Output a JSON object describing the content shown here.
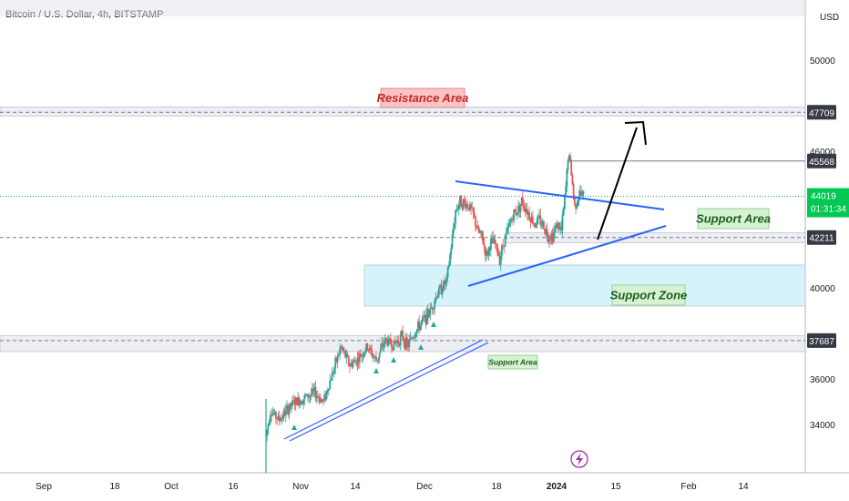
{
  "symbol_title": "Bitcoin / U.S. Dollar, 4h, BITSTAMP",
  "currency": "USD",
  "colors": {
    "up": "#26a69a",
    "down": "#ef5350",
    "price_line": "#26a69a",
    "price_badge": "#00c853",
    "trendline": "#2962ff",
    "level_badge": "#363a45",
    "support_zone": "#d6f3fb",
    "resistance_label_bg": "#f8c4c4",
    "support_label_bg": "#d7f2d3"
  },
  "chart_data": {
    "type": "candlestick",
    "ylim": [
      32300,
      52000
    ],
    "x_ticks": [
      "Sep",
      "18",
      "Oct",
      "16",
      "Nov",
      "14",
      "Dec",
      "18",
      "2024",
      "15",
      "Feb",
      "14"
    ],
    "y_ticks": [
      34000,
      36000,
      40000,
      46000,
      50000
    ],
    "last_price": 44019,
    "countdown": "01:31:34",
    "price_levels": [
      {
        "label": "47709",
        "value": 47709
      },
      {
        "label": "45568",
        "value": 45568
      },
      {
        "label": "42211",
        "value": 42211
      },
      {
        "label": "37687",
        "value": 37687
      }
    ],
    "close_path": [
      [
        0,
        33500
      ],
      [
        2,
        34600
      ],
      [
        6,
        34200
      ],
      [
        12,
        34900
      ],
      [
        18,
        35200
      ],
      [
        22,
        35400
      ],
      [
        26,
        35000
      ],
      [
        30,
        36200
      ],
      [
        34,
        37400
      ],
      [
        38,
        36600
      ],
      [
        42,
        36900
      ],
      [
        46,
        37400
      ],
      [
        50,
        36800
      ],
      [
        54,
        37700
      ],
      [
        58,
        37500
      ],
      [
        62,
        37900
      ],
      [
        64,
        37400
      ],
      [
        66,
        37800
      ],
      [
        70,
        38400
      ],
      [
        74,
        38900
      ],
      [
        78,
        39800
      ],
      [
        82,
        40300
      ],
      [
        84,
        41800
      ],
      [
        86,
        43400
      ],
      [
        88,
        43800
      ],
      [
        92,
        43600
      ],
      [
        94,
        43200
      ],
      [
        96,
        42500
      ],
      [
        98,
        42200
      ],
      [
        100,
        41400
      ],
      [
        102,
        42000
      ],
      [
        104,
        41900
      ],
      [
        106,
        41300
      ],
      [
        108,
        42100
      ],
      [
        110,
        42600
      ],
      [
        112,
        43200
      ],
      [
        114,
        43400
      ],
      [
        116,
        43800
      ],
      [
        118,
        43500
      ],
      [
        120,
        43100
      ],
      [
        122,
        42800
      ],
      [
        124,
        43000
      ],
      [
        126,
        42700
      ],
      [
        128,
        42300
      ],
      [
        130,
        42300
      ],
      [
        132,
        42800
      ],
      [
        134,
        42500
      ],
      [
        136,
        44400
      ],
      [
        137,
        45800
      ],
      [
        138,
        45500
      ],
      [
        140,
        43600
      ],
      [
        142,
        44100
      ],
      [
        144,
        44019
      ]
    ],
    "zones": [
      {
        "label": "Resistance Area",
        "range": [
          47550,
          47950
        ]
      },
      {
        "label": "Support Area",
        "range": [
          41980,
          42420
        ]
      },
      {
        "label": "Support Zone",
        "range": [
          39200,
          41000
        ]
      },
      {
        "label": "Support Area",
        "range": [
          37200,
          37900
        ]
      }
    ],
    "trendlines": [
      "upper triangle line",
      "lower triangle line",
      "rising support channel"
    ],
    "arrow_label": ""
  }
}
